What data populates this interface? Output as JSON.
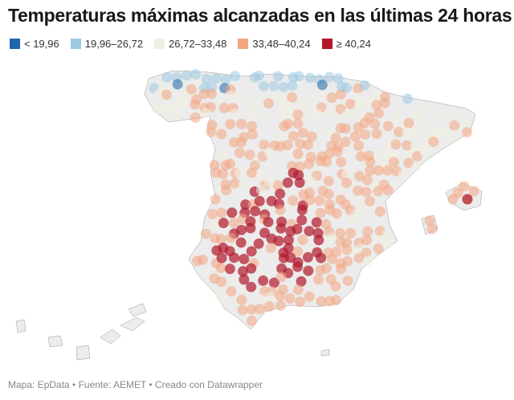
{
  "title": "Temperaturas máximas alcanzadas en las últimas 24 horas",
  "legend": [
    {
      "label": "< 19,96",
      "color": "#2166ac"
    },
    {
      "label": "19,96–26,72",
      "color": "#9ecae1"
    },
    {
      "label": "26,72–33,48",
      "color": "#f2f0e1"
    },
    {
      "label": "33,48–40,24",
      "color": "#f4a582"
    },
    {
      "label": "≥ 40,24",
      "color": "#b2182b"
    }
  ],
  "footer": "Mapa: EpData • Fuente: AEMET • Creado con Datawrapper",
  "map": {
    "land_color": "#ececec",
    "border_color": "#9a9a9a"
  }
}
